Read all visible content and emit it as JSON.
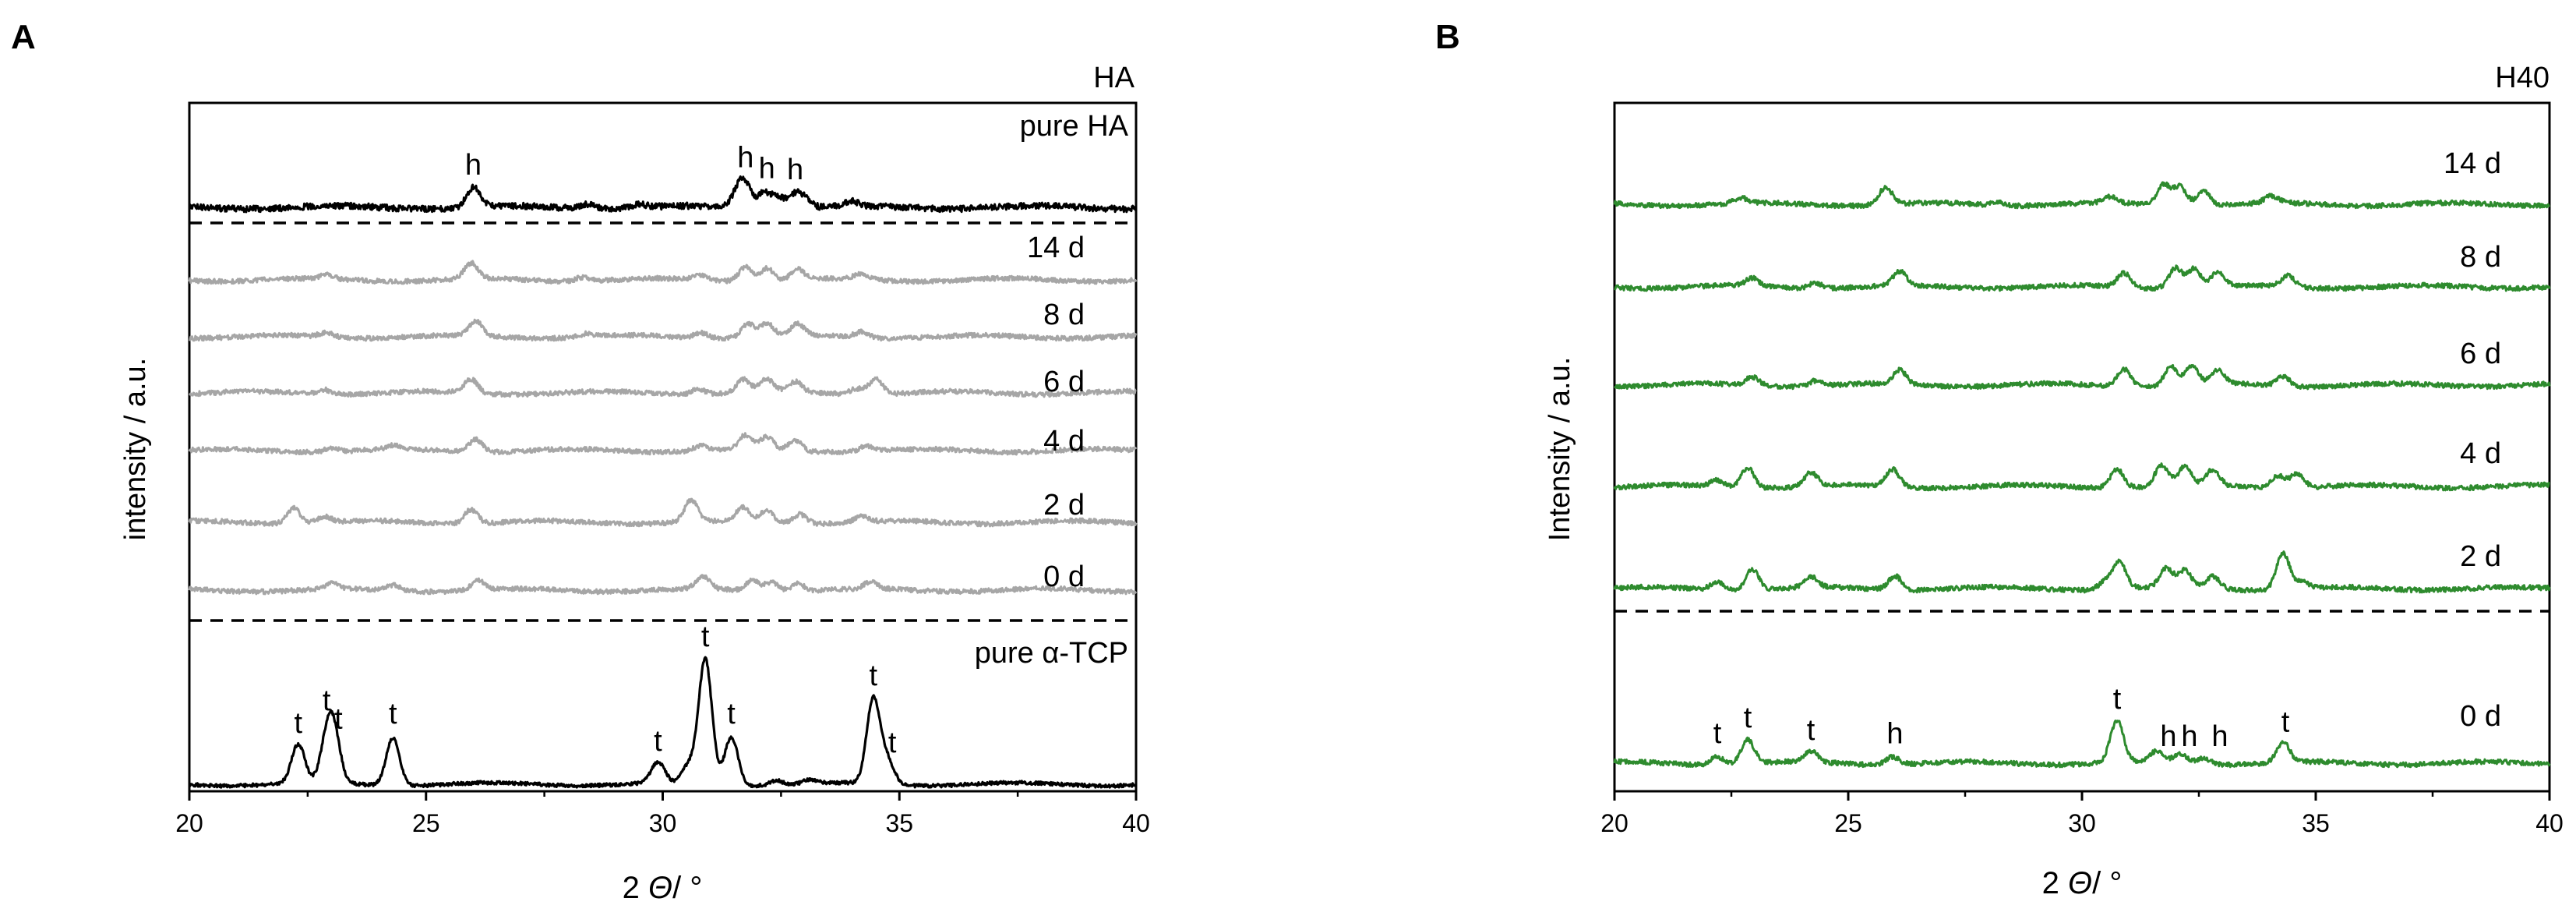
{
  "chart_data": [
    {
      "type": "line",
      "panel_label": "A",
      "title": "HA",
      "xlabel_italic": "Θ",
      "xlabel_prefix": "2 ",
      "xlabel_suffix": "/ °",
      "ylabel": "intensity / a.u.",
      "xlim": [
        20,
        40
      ],
      "xticks": [
        20,
        25,
        30,
        35,
        40
      ],
      "series": [
        {
          "name": "pure HA",
          "color": "#000000",
          "peaks": [
            [
              26.0,
              26
            ],
            [
              31.6,
              20
            ],
            [
              31.75,
              24
            ],
            [
              32.15,
              20
            ],
            [
              32.45,
              14
            ],
            [
              32.8,
              16
            ],
            [
              33.0,
              10
            ],
            [
              34.0,
              6
            ],
            [
              28.4,
              6
            ],
            [
              29.5,
              5
            ]
          ],
          "annotations": [
            {
              "x": 26.0,
              "text": "h"
            },
            {
              "x": 31.75,
              "text": "h"
            },
            {
              "x": 32.2,
              "text": "h"
            },
            {
              "x": 32.8,
              "text": "h"
            }
          ]
        },
        {
          "name": "14 d",
          "color": "#a6a6a6",
          "peaks": [
            [
              22.9,
              5
            ],
            [
              25.95,
              20
            ],
            [
              28.3,
              5
            ],
            [
              30.8,
              6
            ],
            [
              31.75,
              18
            ],
            [
              32.2,
              16
            ],
            [
              32.85,
              13
            ],
            [
              34.2,
              7
            ]
          ]
        },
        {
          "name": "8 d",
          "color": "#a6a6a6",
          "peaks": [
            [
              22.9,
              6
            ],
            [
              26.05,
              19
            ],
            [
              28.4,
              4
            ],
            [
              30.8,
              7
            ],
            [
              31.8,
              18
            ],
            [
              32.2,
              17
            ],
            [
              32.85,
              15
            ],
            [
              34.2,
              7
            ]
          ]
        },
        {
          "name": "6 d",
          "color": "#a6a6a6",
          "peaks": [
            [
              22.85,
              6
            ],
            [
              25.95,
              18
            ],
            [
              30.75,
              7
            ],
            [
              31.7,
              17
            ],
            [
              32.2,
              16
            ],
            [
              32.8,
              13
            ],
            [
              34.1,
              7
            ],
            [
              34.5,
              20
            ]
          ]
        },
        {
          "name": "4 d",
          "color": "#a6a6a6",
          "peaks": [
            [
              23.0,
              5
            ],
            [
              24.3,
              5
            ],
            [
              26.05,
              16
            ],
            [
              30.8,
              7
            ],
            [
              31.75,
              18
            ],
            [
              32.2,
              16
            ],
            [
              32.8,
              13
            ],
            [
              34.3,
              7
            ]
          ]
        },
        {
          "name": "2 d",
          "color": "#a6a6a6",
          "peaks": [
            [
              22.2,
              20
            ],
            [
              22.85,
              8
            ],
            [
              25.95,
              18
            ],
            [
              30.6,
              28
            ],
            [
              31.7,
              18
            ],
            [
              32.2,
              16
            ],
            [
              32.9,
              12
            ],
            [
              34.2,
              8
            ]
          ]
        },
        {
          "name": "0 d",
          "color": "#a6a6a6",
          "peaks": [
            [
              23.0,
              7
            ],
            [
              24.3,
              7
            ],
            [
              26.1,
              12
            ],
            [
              30.85,
              16
            ],
            [
              31.9,
              13
            ],
            [
              32.3,
              12
            ],
            [
              32.85,
              10
            ],
            [
              34.4,
              9
            ]
          ]
        },
        {
          "name": "pure α-TCP",
          "color": "#000000",
          "peaks": [
            [
              22.3,
              50
            ],
            [
              22.9,
              45
            ],
            [
              23.05,
              60
            ],
            [
              24.3,
              62
            ],
            [
              29.9,
              27
            ],
            [
              30.55,
              22
            ],
            [
              30.9,
              160
            ],
            [
              31.45,
              62
            ],
            [
              34.45,
              108
            ],
            [
              34.75,
              30
            ],
            [
              32.4,
              6
            ],
            [
              33.1,
              5
            ]
          ],
          "annotations": [
            {
              "x": 22.3,
              "text": "t"
            },
            {
              "x": 22.9,
              "text": "t"
            },
            {
              "x": 23.15,
              "text": "t"
            },
            {
              "x": 24.3,
              "text": "t"
            },
            {
              "x": 29.9,
              "text": "t"
            },
            {
              "x": 30.9,
              "text": "t"
            },
            {
              "x": 31.45,
              "text": "t"
            },
            {
              "x": 34.45,
              "text": "t"
            },
            {
              "x": 34.85,
              "text": "t"
            }
          ]
        }
      ]
    },
    {
      "type": "line",
      "panel_label": "B",
      "title": "H40",
      "xlabel_italic": "Θ",
      "xlabel_prefix": "2 ",
      "xlabel_suffix": "/ °",
      "ylabel": "Intensity / a.u.",
      "xlim": [
        20,
        40
      ],
      "xticks": [
        20,
        25,
        30,
        35,
        40
      ],
      "series": [
        {
          "name": "14 d",
          "color": "#2e8b2e",
          "peaks": [
            [
              22.7,
              7
            ],
            [
              25.8,
              22
            ],
            [
              28.2,
              4
            ],
            [
              30.6,
              8
            ],
            [
              31.75,
              26
            ],
            [
              32.1,
              24
            ],
            [
              32.6,
              18
            ],
            [
              34.05,
              9
            ]
          ]
        },
        {
          "name": "8 d",
          "color": "#2e8b2e",
          "peaks": [
            [
              22.95,
              10
            ],
            [
              24.3,
              7
            ],
            [
              26.1,
              18
            ],
            [
              30.9,
              18
            ],
            [
              32.0,
              26
            ],
            [
              32.4,
              24
            ],
            [
              32.9,
              18
            ],
            [
              34.4,
              14
            ]
          ]
        },
        {
          "name": "6 d",
          "color": "#2e8b2e",
          "peaks": [
            [
              22.95,
              11
            ],
            [
              24.3,
              7
            ],
            [
              26.1,
              18
            ],
            [
              30.9,
              22
            ],
            [
              31.9,
              24
            ],
            [
              32.35,
              24
            ],
            [
              32.9,
              18
            ],
            [
              34.3,
              12
            ]
          ]
        },
        {
          "name": "4 d",
          "color": "#2e8b2e",
          "peaks": [
            [
              22.2,
              8
            ],
            [
              22.85,
              26
            ],
            [
              24.2,
              18
            ],
            [
              25.95,
              22
            ],
            [
              30.75,
              24
            ],
            [
              31.7,
              26
            ],
            [
              32.2,
              24
            ],
            [
              32.8,
              20
            ],
            [
              34.2,
              16
            ],
            [
              34.6,
              18
            ]
          ]
        },
        {
          "name": "2 d",
          "color": "#2e8b2e",
          "peaks": [
            [
              22.2,
              10
            ],
            [
              22.95,
              26
            ],
            [
              24.2,
              14
            ],
            [
              26.0,
              18
            ],
            [
              30.5,
              10
            ],
            [
              30.8,
              34
            ],
            [
              31.8,
              24
            ],
            [
              32.2,
              22
            ],
            [
              32.8,
              16
            ],
            [
              34.3,
              46
            ],
            [
              34.7,
              8
            ]
          ]
        },
        {
          "name": "0 d",
          "color": "#2e8b2e",
          "peaks": [
            [
              22.2,
              10
            ],
            [
              22.85,
              30
            ],
            [
              24.2,
              14
            ],
            [
              25.95,
              10
            ],
            [
              30.75,
              54
            ],
            [
              31.6,
              14
            ],
            [
              32.1,
              12
            ],
            [
              32.6,
              8
            ],
            [
              34.3,
              26
            ]
          ],
          "annotations": [
            {
              "x": 22.2,
              "text": "t"
            },
            {
              "x": 22.85,
              "text": "t"
            },
            {
              "x": 24.2,
              "text": "t"
            },
            {
              "x": 26.0,
              "text": "h"
            },
            {
              "x": 30.75,
              "text": "t"
            },
            {
              "x": 31.85,
              "text": "h"
            },
            {
              "x": 32.3,
              "text": "h"
            },
            {
              "x": 32.95,
              "text": "h"
            },
            {
              "x": 34.35,
              "text": "t"
            }
          ]
        }
      ]
    }
  ]
}
